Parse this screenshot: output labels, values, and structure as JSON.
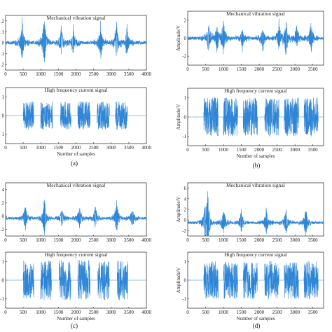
{
  "chart_data": [
    {
      "type": "line",
      "panel": "(a)",
      "plots": [
        {
          "title": "Mechanical vibration signal",
          "xlabel": "",
          "ylabel": "",
          "xlim": [
            0,
            4000
          ],
          "ylim": [
            -0.3,
            0.3
          ],
          "xticks": [
            "0",
            "500",
            "1000",
            "1500",
            "2000",
            "2500",
            "3000",
            "3500",
            "4000"
          ],
          "yticks": [
            ".2",
            ".1",
            "0",
            ".1",
            ".2"
          ],
          "signal": {
            "kind": "vibration",
            "baseline": 0.0,
            "noise": 0.02,
            "spikes": [
              [
                470,
                0.26
              ],
              [
                1100,
                0.34
              ],
              [
                1580,
                0.2
              ],
              [
                1920,
                0.18
              ],
              [
                2700,
                0.24
              ],
              [
                3150,
                0.22
              ],
              [
                3450,
                0.2
              ]
            ]
          }
        },
        {
          "title": "High frequency current signal",
          "xlabel": "Number of samples",
          "ylabel": "",
          "xlim": [
            0,
            4000
          ],
          "ylim": [
            -2,
            2
          ],
          "xticks": [
            "0",
            "500",
            "1000",
            "1500",
            "2000",
            "2500",
            "3000",
            "3500",
            "4000"
          ],
          "yticks": [
            "1",
            "0",
            "1"
          ],
          "signal": {
            "kind": "current",
            "amplitude": 1.0,
            "bursts": [
              [
                500,
                800
              ],
              [
                1000,
                1330
              ],
              [
                1560,
                1860
              ],
              [
                2050,
                2400
              ],
              [
                2600,
                2950
              ],
              [
                3120,
                3460
              ]
            ]
          }
        }
      ]
    },
    {
      "type": "line",
      "panel": "(b)",
      "plots": [
        {
          "title": "Mechanical vibration signal",
          "xlabel": "",
          "ylabel": "Amplitude/V",
          "xlim": [
            0,
            3800
          ],
          "ylim": [
            -2,
            2
          ],
          "xticks": [
            "0",
            "500",
            "1000",
            "1500",
            "2000",
            "2500",
            "3000",
            "3500"
          ],
          "yticks": [
            "2",
            "0",
            "-2"
          ],
          "signal": {
            "kind": "vibration",
            "baseline": 0.0,
            "noise": 0.12,
            "spikes": [
              [
                580,
                1.3
              ],
              [
                820,
                -1.2
              ],
              [
                1000,
                1.5
              ],
              [
                1530,
                -1.0
              ],
              [
                2100,
                -1.1
              ],
              [
                2550,
                1.3
              ],
              [
                2750,
                -1.6
              ],
              [
                3050,
                1.0
              ],
              [
                3450,
                1.3
              ]
            ]
          }
        },
        {
          "title": "High frequency current signal",
          "xlabel": "Number of samples",
          "ylabel": "Amplitude/V",
          "xlim": [
            0,
            3800
          ],
          "ylim": [
            -1.4,
            1.4
          ],
          "xticks": [
            "0",
            "500",
            "1000",
            "1500",
            "2000",
            "2500",
            "3000",
            "3500"
          ],
          "yticks": [
            "1",
            "0",
            "-1"
          ],
          "signal": {
            "kind": "current",
            "amplitude": 0.95,
            "bursts": [
              [
                450,
                850
              ],
              [
                1000,
                1400
              ],
              [
                1550,
                1950
              ],
              [
                2150,
                2550
              ],
              [
                2700,
                3100
              ],
              [
                3250,
                3650
              ]
            ]
          }
        }
      ]
    },
    {
      "type": "line",
      "panel": "(c)",
      "plots": [
        {
          "title": "Mechanical vibration signal",
          "xlabel": "",
          "ylabel": "",
          "xlim": [
            0,
            4000
          ],
          "ylim": [
            -2,
            4
          ],
          "xticks": [
            "0",
            "500",
            "1000",
            "1500",
            "2000",
            "2500",
            "3000",
            "3500",
            "4000"
          ],
          "yticks": [
            "4",
            "2",
            "0",
            "-2"
          ],
          "signal": {
            "kind": "vibration",
            "baseline": 0.0,
            "noise": 0.15,
            "spikes": [
              [
                560,
                1.8
              ],
              [
                1100,
                2.6
              ],
              [
                1600,
                1.2
              ],
              [
                2100,
                1.5
              ],
              [
                2550,
                1.4
              ],
              [
                3150,
                2.2
              ],
              [
                3600,
                1.3
              ]
            ]
          }
        },
        {
          "title": "High frequency current signal",
          "xlabel": "Number of samples",
          "ylabel": "",
          "xlim": [
            0,
            4000
          ],
          "ylim": [
            -1.4,
            1.4
          ],
          "xticks": [
            "0",
            "500",
            "1000",
            "1500",
            "2000",
            "2500",
            "3000",
            "3500",
            "4000"
          ],
          "yticks": [
            "1",
            "0",
            "-1"
          ],
          "signal": {
            "kind": "current",
            "amplitude": 1.0,
            "bursts": [
              [
                500,
                800
              ],
              [
                1000,
                1300
              ],
              [
                1520,
                1850
              ],
              [
                2050,
                2400
              ],
              [
                2620,
                2950
              ],
              [
                3170,
                3470
              ]
            ]
          }
        }
      ]
    },
    {
      "type": "line",
      "panel": "(d)",
      "plots": [
        {
          "title": "Mechanical vibration signal",
          "xlabel": "",
          "ylabel": "Amplitude/V",
          "xlim": [
            0,
            3800
          ],
          "ylim": [
            -2,
            6
          ],
          "xticks": [
            "0",
            "500",
            "1000",
            "1500",
            "2000",
            "2500",
            "3000",
            "3500"
          ],
          "yticks": [
            "6",
            "4",
            "2",
            "0",
            "-2"
          ],
          "signal": {
            "kind": "vibration",
            "baseline": 0.0,
            "noise": 0.2,
            "spikes": [
              [
                480,
                2.8
              ],
              [
                560,
                5.2
              ],
              [
                1000,
                2.5
              ],
              [
                1500,
                2.0
              ],
              [
                2200,
                2.4
              ],
              [
                2750,
                2.2
              ],
              [
                3300,
                2.6
              ]
            ]
          }
        },
        {
          "title": "High frequency current signal",
          "xlabel": "Number of samples",
          "ylabel": "Amplitude/V",
          "xlim": [
            0,
            3800
          ],
          "ylim": [
            -1.4,
            1.4
          ],
          "xticks": [
            "0",
            "500",
            "1000",
            "1500",
            "2000",
            "2500",
            "3000",
            "3500"
          ],
          "yticks": [
            "1",
            "0",
            "-1"
          ],
          "signal": {
            "kind": "current",
            "amplitude": 0.95,
            "bursts": [
              [
                450,
                850
              ],
              [
                1000,
                1400
              ],
              [
                1550,
                1950
              ],
              [
                2150,
                2550
              ],
              [
                2700,
                3100
              ],
              [
                3250,
                3650
              ]
            ]
          }
        }
      ]
    }
  ],
  "colors": {
    "trace": "#2f86d6",
    "axis": "#222222"
  }
}
